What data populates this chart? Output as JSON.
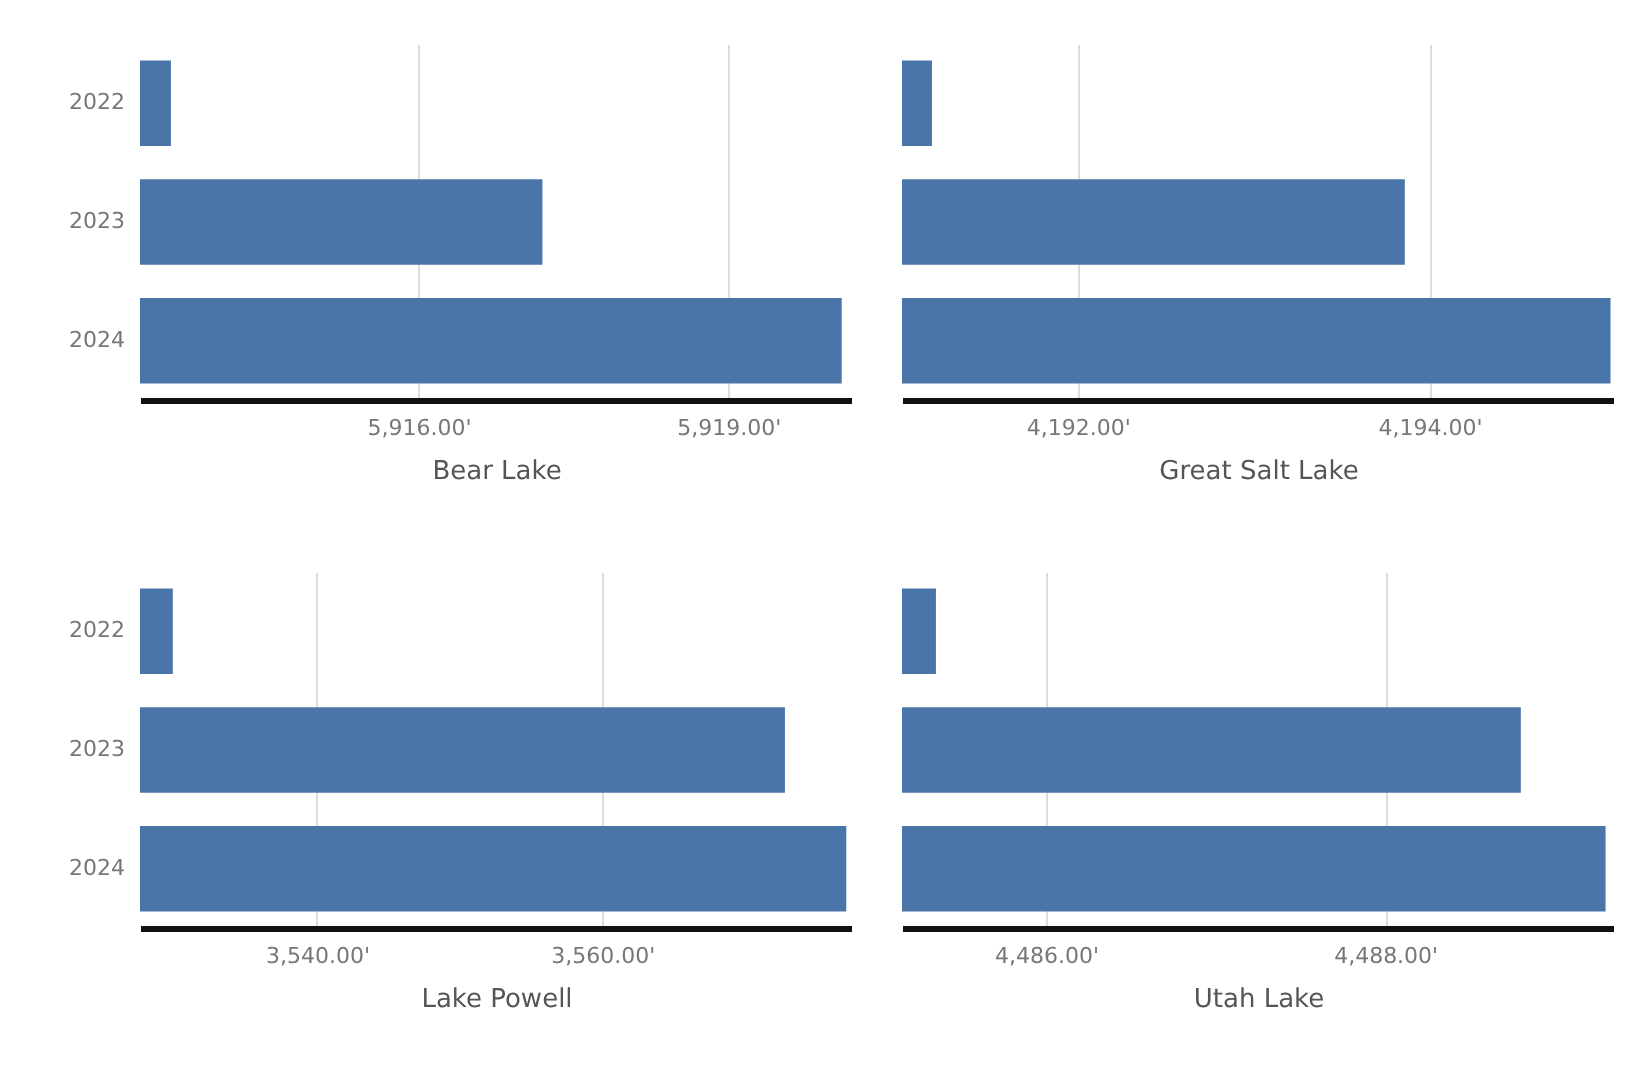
{
  "chart_data": [
    {
      "type": "bar",
      "orientation": "horizontal",
      "xlabel": "Bear Lake",
      "categories": [
        "2022",
        "2023",
        "2024"
      ],
      "values": [
        5913.6,
        5917.2,
        5920.1
      ],
      "color": "#4a75a8",
      "xlim": [
        5913.3,
        5920.2
      ],
      "xticks": [
        {
          "value": 5916,
          "label": "5,916.00'"
        },
        {
          "value": 5919,
          "label": "5,919.00'"
        }
      ],
      "grid": "x"
    },
    {
      "type": "bar",
      "orientation": "horizontal",
      "xlabel": "Great Salt Lake",
      "categories": [
        "2022",
        "2023",
        "2024"
      ],
      "values": [
        4191.17,
        4193.86,
        4195.03
      ],
      "color": "#4a75a8",
      "xlim": [
        4191.0,
        4195.05
      ],
      "xticks": [
        {
          "value": 4192,
          "label": "4,192.00'"
        },
        {
          "value": 4194,
          "label": "4,194.00'"
        }
      ],
      "grid": "x",
      "tick_labels": "x"
    },
    {
      "type": "bar",
      "orientation": "horizontal",
      "xlabel": "Lake Powell",
      "categories": [
        "2022",
        "2023",
        "2024"
      ],
      "values": [
        3529.9,
        3572.8,
        3577.1
      ],
      "color": "#4a75a8",
      "xlim": [
        3527.6,
        3577.5
      ],
      "xticks": [
        {
          "value": 3540,
          "label": "3,540.00'"
        },
        {
          "value": 3560,
          "label": "3,560.00'"
        }
      ],
      "grid": "x"
    },
    {
      "type": "bar",
      "orientation": "horizontal",
      "xlabel": "Utah Lake",
      "categories": [
        "2022",
        "2023",
        "2024"
      ],
      "values": [
        4485.35,
        4488.8,
        4489.3
      ],
      "color": "#4a75a8",
      "xlim": [
        4485.15,
        4489.35
      ],
      "xticks": [
        {
          "value": 4486,
          "label": "4,486.00'"
        },
        {
          "value": 4488,
          "label": "4,488.00'"
        }
      ],
      "grid": "x",
      "tick_labels": "x"
    }
  ]
}
